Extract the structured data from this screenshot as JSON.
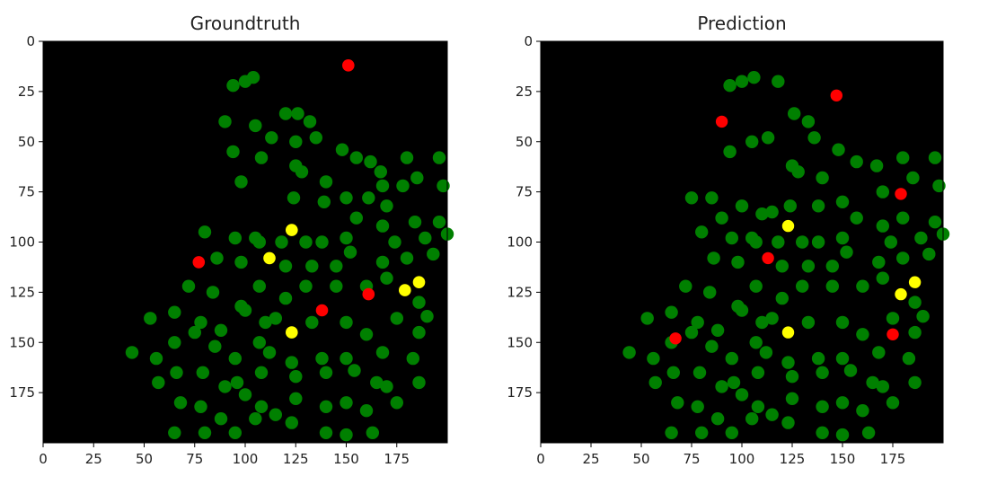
{
  "chart_data": [
    {
      "type": "heatmap",
      "title": "Groundtruth",
      "xlim": [
        0,
        200
      ],
      "ylim": [
        200,
        0
      ],
      "xticks": [
        0,
        25,
        50,
        75,
        100,
        125,
        150,
        175
      ],
      "yticks": [
        0,
        25,
        50,
        75,
        100,
        125,
        150,
        175
      ],
      "background": "#000000",
      "colors": {
        "green": "#008000",
        "red": "#ff0000",
        "yellow": "#ffff00"
      },
      "blobs": {
        "green": [
          [
            100,
            20
          ],
          [
            94,
            22
          ],
          [
            104,
            18
          ],
          [
            90,
            40
          ],
          [
            105,
            42
          ],
          [
            120,
            36
          ],
          [
            126,
            36
          ],
          [
            132,
            40
          ],
          [
            113,
            48
          ],
          [
            135,
            48
          ],
          [
            94,
            55
          ],
          [
            125,
            50
          ],
          [
            148,
            54
          ],
          [
            98,
            70
          ],
          [
            108,
            58
          ],
          [
            125,
            62
          ],
          [
            128,
            65
          ],
          [
            140,
            70
          ],
          [
            155,
            58
          ],
          [
            162,
            60
          ],
          [
            167,
            65
          ],
          [
            180,
            58
          ],
          [
            196,
            58
          ],
          [
            168,
            72
          ],
          [
            185,
            68
          ],
          [
            198,
            72
          ],
          [
            124,
            78
          ],
          [
            139,
            80
          ],
          [
            150,
            78
          ],
          [
            161,
            78
          ],
          [
            170,
            82
          ],
          [
            178,
            72
          ],
          [
            155,
            88
          ],
          [
            168,
            92
          ],
          [
            184,
            90
          ],
          [
            196,
            90
          ],
          [
            80,
            95
          ],
          [
            95,
            98
          ],
          [
            105,
            98
          ],
          [
            118,
            100
          ],
          [
            130,
            100
          ],
          [
            138,
            100
          ],
          [
            150,
            98
          ],
          [
            174,
            100
          ],
          [
            189,
            98
          ],
          [
            200,
            96
          ],
          [
            86,
            108
          ],
          [
            98,
            110
          ],
          [
            107,
            100
          ],
          [
            120,
            112
          ],
          [
            133,
            112
          ],
          [
            145,
            112
          ],
          [
            152,
            105
          ],
          [
            168,
            110
          ],
          [
            180,
            108
          ],
          [
            193,
            106
          ],
          [
            72,
            122
          ],
          [
            84,
            125
          ],
          [
            98,
            132
          ],
          [
            107,
            122
          ],
          [
            120,
            128
          ],
          [
            130,
            122
          ],
          [
            145,
            122
          ],
          [
            160,
            122
          ],
          [
            170,
            118
          ],
          [
            186,
            130
          ],
          [
            53,
            138
          ],
          [
            65,
            135
          ],
          [
            78,
            140
          ],
          [
            88,
            144
          ],
          [
            100,
            134
          ],
          [
            110,
            140
          ],
          [
            115,
            138
          ],
          [
            133,
            140
          ],
          [
            150,
            140
          ],
          [
            160,
            146
          ],
          [
            175,
            138
          ],
          [
            186,
            145
          ],
          [
            190,
            137
          ],
          [
            44,
            155
          ],
          [
            56,
            158
          ],
          [
            65,
            150
          ],
          [
            75,
            145
          ],
          [
            85,
            152
          ],
          [
            95,
            158
          ],
          [
            107,
            150
          ],
          [
            112,
            155
          ],
          [
            123,
            160
          ],
          [
            138,
            158
          ],
          [
            150,
            158
          ],
          [
            168,
            155
          ],
          [
            183,
            158
          ],
          [
            57,
            170
          ],
          [
            66,
            165
          ],
          [
            79,
            165
          ],
          [
            90,
            172
          ],
          [
            96,
            170
          ],
          [
            108,
            165
          ],
          [
            125,
            167
          ],
          [
            140,
            165
          ],
          [
            154,
            164
          ],
          [
            165,
            170
          ],
          [
            170,
            172
          ],
          [
            186,
            170
          ],
          [
            68,
            180
          ],
          [
            78,
            182
          ],
          [
            88,
            188
          ],
          [
            100,
            176
          ],
          [
            108,
            182
          ],
          [
            115,
            186
          ],
          [
            125,
            178
          ],
          [
            140,
            182
          ],
          [
            150,
            180
          ],
          [
            160,
            184
          ],
          [
            175,
            180
          ],
          [
            65,
            195
          ],
          [
            80,
            195
          ],
          [
            95,
            195
          ],
          [
            105,
            188
          ],
          [
            123,
            190
          ],
          [
            140,
            195
          ],
          [
            150,
            196
          ],
          [
            163,
            195
          ]
        ],
        "red": [
          [
            151,
            12
          ],
          [
            77,
            110
          ],
          [
            138,
            134
          ],
          [
            161,
            126
          ]
        ],
        "yellow": [
          [
            123,
            94
          ],
          [
            112,
            108
          ],
          [
            123,
            145
          ],
          [
            179,
            124
          ],
          [
            186,
            120
          ]
        ]
      }
    },
    {
      "type": "heatmap",
      "title": "Prediction",
      "xlim": [
        0,
        200
      ],
      "ylim": [
        200,
        0
      ],
      "xticks": [
        0,
        25,
        50,
        75,
        100,
        125,
        150,
        175
      ],
      "yticks": [
        0,
        25,
        50,
        75,
        100,
        125,
        150,
        175
      ],
      "background": "#000000",
      "colors": {
        "green": "#008000",
        "red": "#ff0000",
        "yellow": "#ffff00"
      },
      "blobs": {
        "green": [
          [
            100,
            20
          ],
          [
            94,
            22
          ],
          [
            106,
            18
          ],
          [
            118,
            20
          ],
          [
            126,
            36
          ],
          [
            113,
            48
          ],
          [
            133,
            40
          ],
          [
            136,
            48
          ],
          [
            94,
            55
          ],
          [
            105,
            50
          ],
          [
            125,
            62
          ],
          [
            128,
            65
          ],
          [
            140,
            68
          ],
          [
            148,
            54
          ],
          [
            157,
            60
          ],
          [
            167,
            62
          ],
          [
            180,
            58
          ],
          [
            196,
            58
          ],
          [
            170,
            75
          ],
          [
            185,
            68
          ],
          [
            198,
            72
          ],
          [
            75,
            78
          ],
          [
            85,
            78
          ],
          [
            90,
            88
          ],
          [
            100,
            82
          ],
          [
            110,
            86
          ],
          [
            115,
            85
          ],
          [
            124,
            82
          ],
          [
            138,
            82
          ],
          [
            150,
            80
          ],
          [
            157,
            88
          ],
          [
            170,
            92
          ],
          [
            180,
            88
          ],
          [
            196,
            90
          ],
          [
            80,
            95
          ],
          [
            95,
            98
          ],
          [
            105,
            98
          ],
          [
            118,
            100
          ],
          [
            130,
            100
          ],
          [
            138,
            100
          ],
          [
            150,
            98
          ],
          [
            174,
            100
          ],
          [
            189,
            98
          ],
          [
            200,
            96
          ],
          [
            86,
            108
          ],
          [
            98,
            110
          ],
          [
            107,
            100
          ],
          [
            120,
            112
          ],
          [
            133,
            112
          ],
          [
            145,
            112
          ],
          [
            152,
            105
          ],
          [
            168,
            110
          ],
          [
            180,
            108
          ],
          [
            193,
            106
          ],
          [
            72,
            122
          ],
          [
            84,
            125
          ],
          [
            98,
            132
          ],
          [
            107,
            122
          ],
          [
            120,
            128
          ],
          [
            130,
            122
          ],
          [
            145,
            122
          ],
          [
            160,
            122
          ],
          [
            170,
            118
          ],
          [
            186,
            130
          ],
          [
            53,
            138
          ],
          [
            65,
            135
          ],
          [
            78,
            140
          ],
          [
            88,
            144
          ],
          [
            100,
            134
          ],
          [
            110,
            140
          ],
          [
            115,
            138
          ],
          [
            133,
            140
          ],
          [
            150,
            140
          ],
          [
            160,
            146
          ],
          [
            175,
            138
          ],
          [
            186,
            145
          ],
          [
            190,
            137
          ],
          [
            44,
            155
          ],
          [
            56,
            158
          ],
          [
            65,
            150
          ],
          [
            75,
            145
          ],
          [
            85,
            152
          ],
          [
            95,
            158
          ],
          [
            107,
            150
          ],
          [
            112,
            155
          ],
          [
            123,
            160
          ],
          [
            138,
            158
          ],
          [
            150,
            158
          ],
          [
            168,
            155
          ],
          [
            183,
            158
          ],
          [
            57,
            170
          ],
          [
            66,
            165
          ],
          [
            79,
            165
          ],
          [
            90,
            172
          ],
          [
            96,
            170
          ],
          [
            108,
            165
          ],
          [
            125,
            167
          ],
          [
            140,
            165
          ],
          [
            154,
            164
          ],
          [
            165,
            170
          ],
          [
            170,
            172
          ],
          [
            186,
            170
          ],
          [
            68,
            180
          ],
          [
            78,
            182
          ],
          [
            88,
            188
          ],
          [
            100,
            176
          ],
          [
            108,
            182
          ],
          [
            115,
            186
          ],
          [
            125,
            178
          ],
          [
            140,
            182
          ],
          [
            150,
            180
          ],
          [
            160,
            184
          ],
          [
            175,
            180
          ],
          [
            65,
            195
          ],
          [
            80,
            195
          ],
          [
            95,
            195
          ],
          [
            105,
            188
          ],
          [
            123,
            190
          ],
          [
            140,
            195
          ],
          [
            150,
            196
          ],
          [
            163,
            195
          ]
        ],
        "red": [
          [
            147,
            27
          ],
          [
            90,
            40
          ],
          [
            179,
            76
          ],
          [
            113,
            108
          ],
          [
            67,
            148
          ],
          [
            175,
            146
          ]
        ],
        "yellow": [
          [
            123,
            92
          ],
          [
            123,
            145
          ],
          [
            179,
            126
          ],
          [
            186,
            120
          ]
        ]
      }
    }
  ]
}
